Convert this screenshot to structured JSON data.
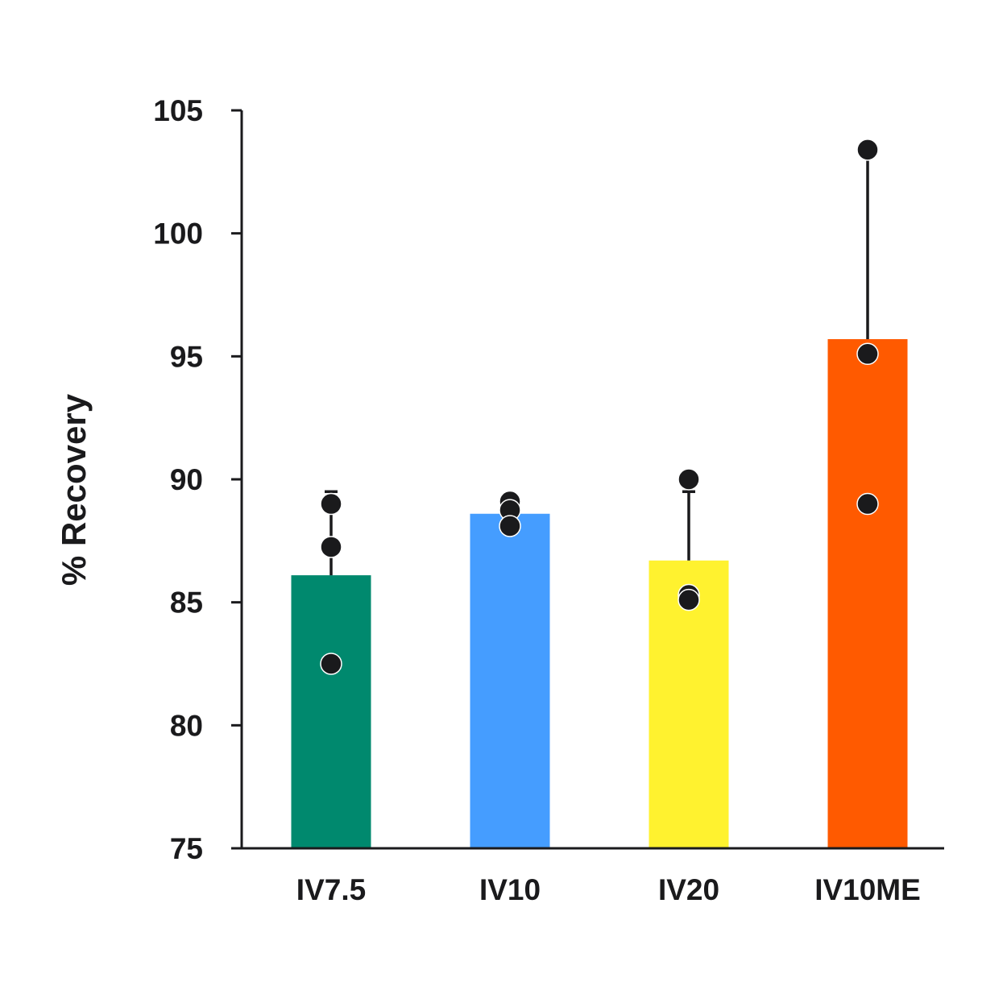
{
  "chart_data": {
    "type": "bar",
    "title": "",
    "xlabel": "",
    "ylabel": "% Recovery",
    "ylim": [
      75,
      105
    ],
    "yticks": [
      75,
      80,
      85,
      90,
      95,
      100,
      105
    ],
    "grid": false,
    "categories": [
      "IV7.5",
      "IV10",
      "IV20",
      "IV10ME"
    ],
    "values": [
      86.1,
      88.6,
      86.7,
      95.7
    ],
    "error_upper": [
      89.5,
      88.6,
      89.5,
      103.1
    ],
    "points": [
      [
        89.0,
        87.25,
        82.5
      ],
      [
        89.1,
        88.75,
        88.1
      ],
      [
        90.0,
        85.3,
        85.1
      ],
      [
        103.4,
        95.1,
        89.0
      ]
    ],
    "colors": [
      "#00896e",
      "#459dff",
      "#fff22f",
      "#ff5a00"
    ],
    "point_color": "#1a1a1c"
  }
}
